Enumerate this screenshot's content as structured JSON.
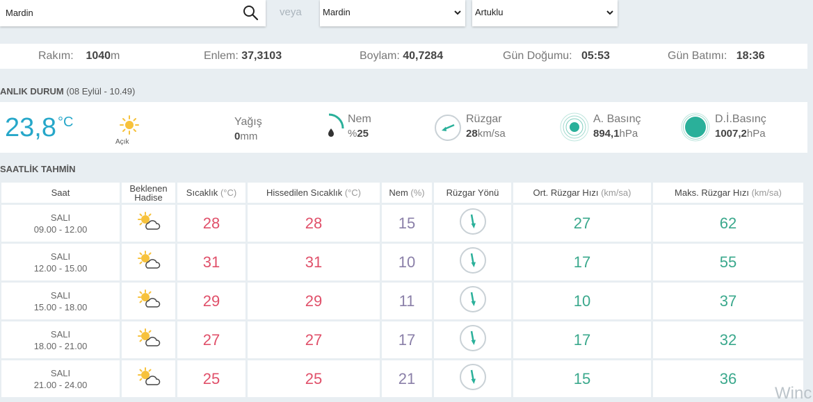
{
  "search": {
    "value": "Mardin",
    "icon": "search-icon"
  },
  "or_label": "veya",
  "selects": {
    "city": "Mardin",
    "district": "Artuklu"
  },
  "info": {
    "altitude_label": "Rakım:",
    "altitude_value": "1040",
    "altitude_unit": "m",
    "lat_label": "Enlem:",
    "lat_value": "37,3103",
    "lon_label": "Boylam:",
    "lon_value": "40,7284",
    "sunrise_label": "Gün Doğumu:",
    "sunrise_value": "05:53",
    "sunset_label": "Gün Batımı:",
    "sunset_value": "18:36"
  },
  "current": {
    "title": "ANLIK DURUM",
    "subtitle": "(08 Eylül - 10.49)",
    "temp_value": "23,8",
    "temp_unit": "°C",
    "condition": "Açık",
    "rain_label": "Yağış",
    "rain_value": "0",
    "rain_unit": "mm",
    "humidity_label": "Nem",
    "humidity_prefix": "%",
    "humidity_value": "25",
    "wind_label": "Rüzgar",
    "wind_value": "28",
    "wind_unit": "km/sa",
    "pressure_label": "A. Basınç",
    "pressure_value": "894,1",
    "pressure_unit": "hPa",
    "sealevel_label": "D.İ.Basınç",
    "sealevel_value": "1007,2",
    "sealevel_unit": "hPa",
    "colors": {
      "temp": "#26a7c9",
      "accent": "#2ab09a"
    }
  },
  "hourly": {
    "title": "SAATLİK TAHMİN",
    "headers": {
      "time": "Saat",
      "event": "Beklenen Hadise",
      "temp": "Sıcaklık",
      "temp_unit": "(°C)",
      "feels": "Hissedilen Sıcaklık",
      "feels_unit": "(°C)",
      "humidity": "Nem",
      "humidity_unit": "(%)",
      "wind_dir": "Rüzgar Yönü",
      "avg_wind": "Ort. Rüzgar Hızı",
      "avg_wind_unit": "(km/sa)",
      "max_wind": "Maks. Rüzgar Hızı",
      "max_wind_unit": "(km/sa)"
    },
    "rows": [
      {
        "day": "SALI",
        "range": "09.00 - 12.00",
        "temp": "28",
        "feels": "28",
        "humidity": "15",
        "avg_wind": "27",
        "max_wind": "62"
      },
      {
        "day": "SALI",
        "range": "12.00 - 15.00",
        "temp": "31",
        "feels": "31",
        "humidity": "10",
        "avg_wind": "17",
        "max_wind": "55"
      },
      {
        "day": "SALI",
        "range": "15.00 - 18.00",
        "temp": "29",
        "feels": "29",
        "humidity": "11",
        "avg_wind": "10",
        "max_wind": "37"
      },
      {
        "day": "SALI",
        "range": "18.00 - 21.00",
        "temp": "27",
        "feels": "27",
        "humidity": "17",
        "avg_wind": "17",
        "max_wind": "32"
      },
      {
        "day": "SALI",
        "range": "21.00 - 24.00",
        "temp": "25",
        "feels": "25",
        "humidity": "21",
        "avg_wind": "15",
        "max_wind": "36"
      }
    ]
  },
  "watermark": "Winc"
}
